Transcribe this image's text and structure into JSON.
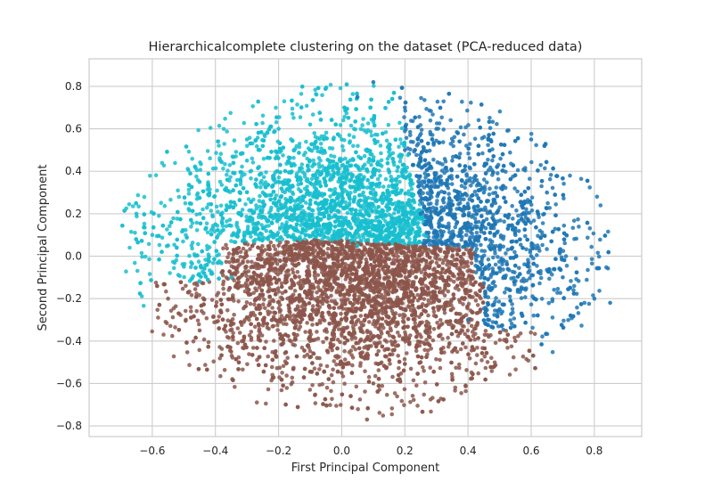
{
  "chart_data": {
    "type": "scatter",
    "title": "Hierarchicalcomplete clustering on the dataset (PCA-reduced data)",
    "xlabel": "First Principal Component",
    "ylabel": "Second Principal Component",
    "xlim": [
      -0.8,
      0.95
    ],
    "ylim": [
      -0.85,
      0.93
    ],
    "xticks": [
      -0.6,
      -0.4,
      -0.2,
      0.0,
      0.2,
      0.4,
      0.6,
      0.8
    ],
    "xtick_labels": [
      "−0.6",
      "−0.4",
      "−0.2",
      "0.0",
      "0.2",
      "0.4",
      "0.6",
      "0.8"
    ],
    "yticks": [
      -0.8,
      -0.6,
      -0.4,
      -0.2,
      0.0,
      0.2,
      0.4,
      0.6,
      0.8
    ],
    "ytick_labels": [
      "−0.8",
      "−0.6",
      "−0.4",
      "−0.2",
      "0.0",
      "0.2",
      "0.4",
      "0.6",
      "0.8"
    ],
    "grid": true,
    "legend": "none",
    "series": [
      {
        "color": "#17becf",
        "cluster_extent": {
          "x": [
            -0.72,
            0.18
          ],
          "y": [
            -0.15,
            0.72
          ]
        },
        "points": [
          [
            -0.55,
            0.05
          ],
          [
            -0.45,
            0.35
          ],
          [
            -0.3,
            0.55
          ],
          [
            -0.2,
            0.6
          ],
          [
            -0.1,
            0.62
          ],
          [
            0.0,
            0.55
          ],
          [
            0.1,
            0.45
          ],
          [
            0.15,
            0.4
          ],
          [
            -0.65,
            0.2
          ],
          [
            -0.6,
            0.1
          ],
          [
            -0.5,
            -0.05
          ],
          [
            -0.35,
            -0.1
          ],
          [
            -0.25,
            0.3
          ],
          [
            -0.15,
            0.2
          ],
          [
            0.0,
            0.25
          ],
          [
            0.05,
            0.05
          ],
          [
            -0.4,
            0.15
          ],
          [
            -0.3,
            0.45
          ]
        ]
      },
      {
        "color": "#1f77b4",
        "cluster_extent": {
          "x": [
            0.0,
            0.86
          ],
          "y": [
            -0.38,
            0.85
          ]
        },
        "points": [
          [
            0.05,
            0.75
          ],
          [
            0.1,
            0.82
          ],
          [
            0.2,
            0.7
          ],
          [
            0.3,
            0.6
          ],
          [
            0.35,
            0.45
          ],
          [
            0.45,
            0.3
          ],
          [
            0.55,
            0.1
          ],
          [
            0.6,
            0.0
          ],
          [
            0.7,
            -0.1
          ],
          [
            0.8,
            -0.2
          ],
          [
            0.85,
            -0.22
          ],
          [
            0.5,
            -0.25
          ],
          [
            0.4,
            -0.3
          ],
          [
            0.25,
            0.2
          ],
          [
            0.2,
            0.5
          ],
          [
            0.6,
            0.55
          ],
          [
            0.65,
            0.3
          ],
          [
            0.4,
            0.05
          ]
        ]
      },
      {
        "color": "#8c564b",
        "cluster_extent": {
          "x": [
            -0.6,
            0.62
          ],
          "y": [
            -0.78,
            0.1
          ]
        },
        "points": [
          [
            -0.55,
            -0.2
          ],
          [
            -0.45,
            -0.35
          ],
          [
            -0.35,
            -0.45
          ],
          [
            -0.25,
            -0.3
          ],
          [
            -0.1,
            -0.4
          ],
          [
            0.0,
            -0.55
          ],
          [
            0.1,
            -0.6
          ],
          [
            0.25,
            -0.5
          ],
          [
            0.35,
            -0.45
          ],
          [
            0.45,
            -0.4
          ],
          [
            0.55,
            -0.4
          ],
          [
            0.08,
            -0.77
          ],
          [
            -0.2,
            0.05
          ],
          [
            -0.05,
            -0.05
          ],
          [
            0.15,
            -0.1
          ],
          [
            0.3,
            -0.2
          ],
          [
            -0.3,
            -0.15
          ],
          [
            0.2,
            0.0
          ]
        ]
      }
    ]
  }
}
